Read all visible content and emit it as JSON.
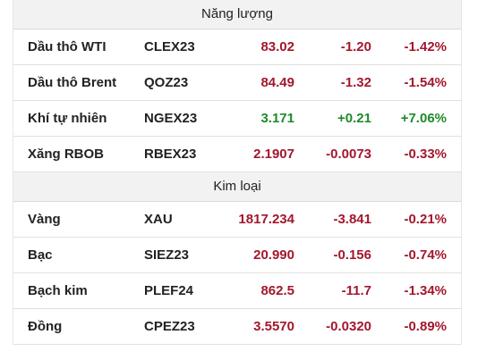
{
  "sections": [
    {
      "title": "Năng lượng",
      "rows": [
        {
          "name": "Dầu thô WTI",
          "symbol": "CLEX23",
          "price": "83.02",
          "change": "-1.20",
          "pct": "-1.42%",
          "trend": "down"
        },
        {
          "name": "Dầu thô Brent",
          "symbol": "QOZ23",
          "price": "84.49",
          "change": "-1.32",
          "pct": "-1.54%",
          "trend": "down"
        },
        {
          "name": "Khí tự nhiên",
          "symbol": "NGEX23",
          "price": "3.171",
          "change": "+0.21",
          "pct": "+7.06%",
          "trend": "up"
        },
        {
          "name": "Xăng RBOB",
          "symbol": "RBEX23",
          "price": "2.1907",
          "change": "-0.0073",
          "pct": "-0.33%",
          "trend": "down"
        }
      ]
    },
    {
      "title": "Kim loại",
      "rows": [
        {
          "name": "Vàng",
          "symbol": "XAU",
          "price": "1817.234",
          "change": "-3.841",
          "pct": "-0.21%",
          "trend": "down"
        },
        {
          "name": "Bạc",
          "symbol": "SIEZ23",
          "price": "20.990",
          "change": "-0.156",
          "pct": "-0.74%",
          "trend": "down"
        },
        {
          "name": "Bạch kim",
          "symbol": "PLEF24",
          "price": "862.5",
          "change": "-11.7",
          "pct": "-1.34%",
          "trend": "down"
        },
        {
          "name": "Đồng",
          "symbol": "CPEZ23",
          "price": "3.5570",
          "change": "-0.0320",
          "pct": "-0.89%",
          "trend": "down"
        }
      ]
    }
  ],
  "colors": {
    "up": "#1f8a2a",
    "down": "#a3172d",
    "header_bg": "#f2f2f2"
  }
}
